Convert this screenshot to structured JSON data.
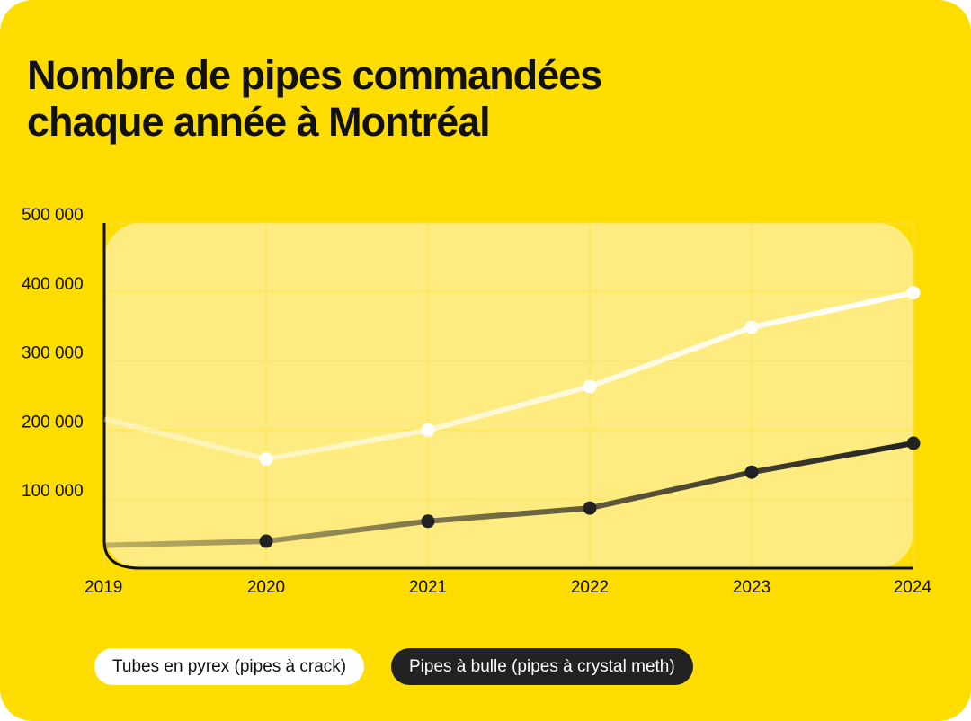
{
  "chart_data": {
    "type": "line",
    "title": "Nombre de pipes commandées chaque année à Montréal",
    "x": [
      2019,
      2020,
      2021,
      2022,
      2023,
      2024
    ],
    "xlim": [
      2019,
      2024
    ],
    "xticks": [
      2019,
      2020,
      2021,
      2022,
      2023,
      2024
    ],
    "ylim": [
      0,
      500000
    ],
    "yticks": [
      {
        "value": 100000,
        "label": "100 000"
      },
      {
        "value": 200000,
        "label": "200 000"
      },
      {
        "value": 300000,
        "label": "300 000"
      },
      {
        "value": 400000,
        "label": "400 000"
      },
      {
        "value": 500000,
        "label": "500 000"
      }
    ],
    "grid": true,
    "series": [
      {
        "name": "Tubes en pyrex (pipes à crack)",
        "color": "#ffffff",
        "values": [
          216000,
          158000,
          200000,
          263000,
          349000,
          399000
        ]
      },
      {
        "name": "Pipes à bulle (pipes à crystal meth)",
        "color": "#222222",
        "values": [
          33000,
          39000,
          68000,
          87000,
          139000,
          181000
        ]
      }
    ]
  }
}
